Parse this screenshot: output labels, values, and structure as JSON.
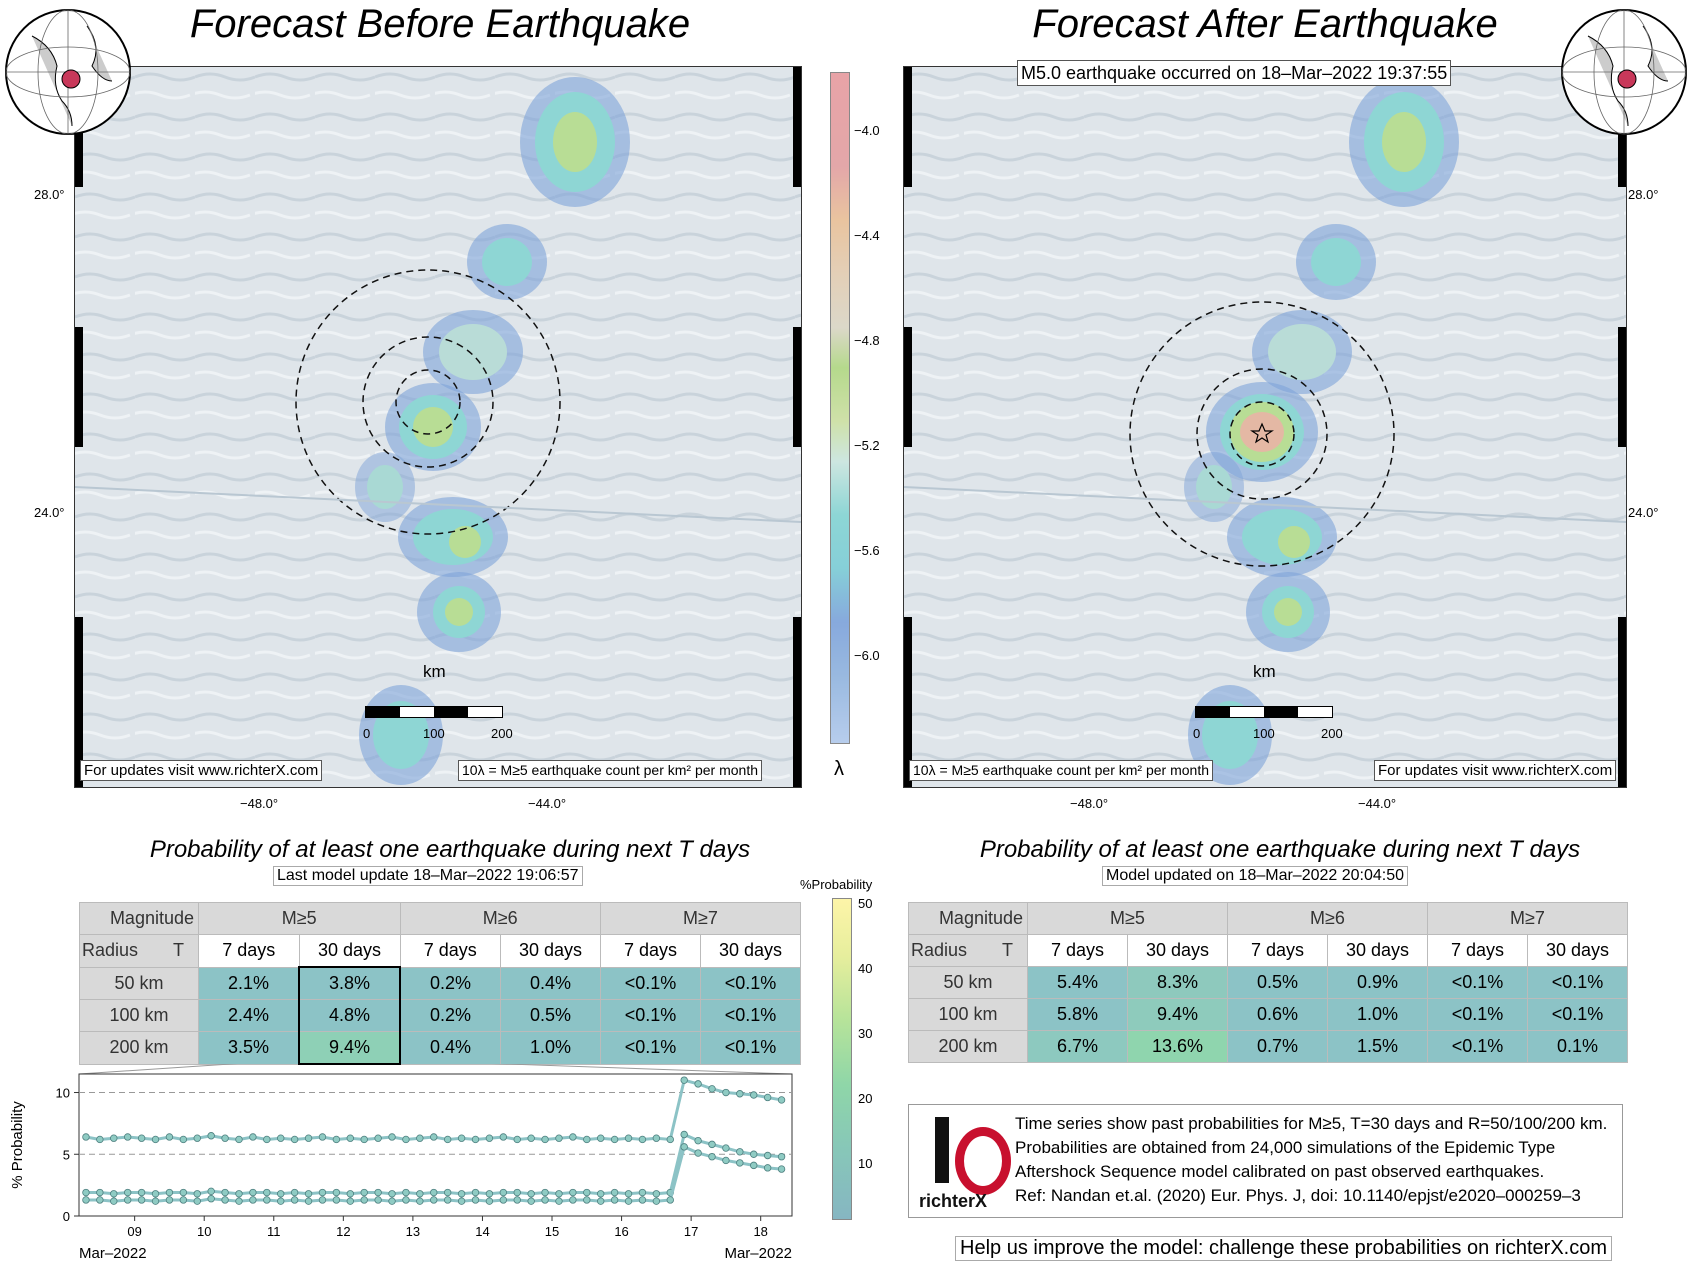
{
  "before": {
    "title": "Forecast Before Earthquake",
    "updates_note": "For updates visit www.richterX.com",
    "units_note": "10λ = M≥5 earthquake count per km² per month",
    "lat_labels": [
      "28.0°",
      "24.0°"
    ],
    "lon_labels": [
      "−48.0°",
      "−44.0°"
    ],
    "scale": {
      "unit": "km",
      "ticks": [
        "0",
        "100",
        "200"
      ]
    }
  },
  "after": {
    "title": "Forecast After Earthquake",
    "event_note": "M5.0 earthquake occurred on 18–Mar–2022 19:37:55",
    "updates_note": "For updates visit www.richterX.com",
    "units_note": "10λ = M≥5 earthquake count per km² per month",
    "lat_labels": [
      "28.0°",
      "24.0°"
    ],
    "lon_labels": [
      "−48.0°",
      "−44.0°"
    ],
    "scale": {
      "unit": "km",
      "ticks": [
        "0",
        "100",
        "200"
      ]
    }
  },
  "lambda_bar": {
    "label": "λ",
    "ticks": [
      "−4.0",
      "−4.4",
      "−4.8",
      "−5.2",
      "−5.6",
      "−6.0"
    ]
  },
  "prob_bar": {
    "label": "%Probability",
    "ticks": [
      "50",
      "40",
      "30",
      "20",
      "10"
    ]
  },
  "table_left": {
    "heading": "Probability of at least one earthquake during next T days",
    "update_note": "Last model update 18–Mar–2022 19:06:57",
    "magnitude_label": "Magnitude",
    "radius_label": "Radius",
    "t_label": "T",
    "magnitudes": [
      "M≥5",
      "M≥6",
      "M≥7"
    ],
    "periods": [
      "7 days",
      "30 days",
      "7 days",
      "30 days",
      "7 days",
      "30 days"
    ],
    "rows": [
      {
        "radius": "50 km",
        "values": [
          "2.1%",
          "3.8%",
          "0.2%",
          "0.4%",
          "<0.1%",
          "<0.1%"
        ]
      },
      {
        "radius": "100 km",
        "values": [
          "2.4%",
          "4.8%",
          "0.2%",
          "0.5%",
          "<0.1%",
          "<0.1%"
        ]
      },
      {
        "radius": "200 km",
        "values": [
          "3.5%",
          "9.4%",
          "0.4%",
          "1.0%",
          "<0.1%",
          "<0.1%"
        ]
      }
    ]
  },
  "table_right": {
    "heading": "Probability of at least one earthquake during next T days",
    "update_note": "Model updated on 18–Mar–2022 20:04:50",
    "magnitude_label": "Magnitude",
    "radius_label": "Radius",
    "t_label": "T",
    "magnitudes": [
      "M≥5",
      "M≥6",
      "M≥7"
    ],
    "periods": [
      "7 days",
      "30 days",
      "7 days",
      "30 days",
      "7 days",
      "30 days"
    ],
    "rows": [
      {
        "radius": "50 km",
        "values": [
          "5.4%",
          "8.3%",
          "0.5%",
          "0.9%",
          "<0.1%",
          "<0.1%"
        ]
      },
      {
        "radius": "100 km",
        "values": [
          "5.8%",
          "9.4%",
          "0.6%",
          "1.0%",
          "<0.1%",
          "<0.1%"
        ]
      },
      {
        "radius": "200 km",
        "values": [
          "6.7%",
          "13.6%",
          "0.7%",
          "1.5%",
          "<0.1%",
          "0.1%"
        ]
      }
    ]
  },
  "info": {
    "logo_text": "richterX",
    "lines": [
      "Time series show past probabilities for M≥5, T=30 days and R=50/100/200 km.",
      "Probabilities are obtained from 24,000 simulations of the Epidemic Type",
      "Aftershock Sequence model calibrated on past observed earthquakes.",
      "Ref: Nandan et.al. (2020) Eur. Phys. J, doi: 10.1140/epjst/e2020–000259–3"
    ],
    "footer": "Help us improve the model: challenge these probabilities on richterX.com"
  },
  "colors": {
    "table_cell": "#8cc3c6",
    "table_cell_high": "#8ed0b6",
    "series_line": "#8cc3c6",
    "series_marker": "#8fcbc3"
  },
  "chart_data": {
    "type": "line",
    "title": "",
    "xlabel": "",
    "ylabel": "% Probability",
    "ylim": [
      0,
      11.5
    ],
    "yticks": [
      0,
      5,
      10
    ],
    "x_tick_labels": [
      "09",
      "10",
      "11",
      "12",
      "13",
      "14",
      "15",
      "16",
      "17",
      "18"
    ],
    "x_range_labels": [
      "Mar–2022",
      "Mar–2022"
    ],
    "x_days": [
      8.3,
      8.5,
      8.7,
      8.9,
      9.1,
      9.3,
      9.5,
      9.7,
      9.9,
      10.1,
      10.3,
      10.5,
      10.7,
      10.9,
      11.1,
      11.3,
      11.5,
      11.7,
      11.9,
      12.1,
      12.3,
      12.5,
      12.7,
      12.9,
      13.1,
      13.3,
      13.5,
      13.7,
      13.9,
      14.1,
      14.3,
      14.5,
      14.7,
      14.9,
      15.1,
      15.3,
      15.5,
      15.7,
      15.9,
      16.1,
      16.3,
      16.5,
      16.7,
      16.9,
      17.1,
      17.3,
      17.5,
      17.7,
      17.9,
      18.1,
      18.3
    ],
    "series": [
      {
        "name": "R=200 km",
        "values": [
          6.4,
          6.2,
          6.3,
          6.4,
          6.3,
          6.2,
          6.4,
          6.2,
          6.3,
          6.5,
          6.3,
          6.2,
          6.4,
          6.2,
          6.3,
          6.2,
          6.3,
          6.4,
          6.2,
          6.3,
          6.2,
          6.3,
          6.4,
          6.2,
          6.3,
          6.4,
          6.2,
          6.3,
          6.2,
          6.3,
          6.4,
          6.2,
          6.3,
          6.2,
          6.3,
          6.4,
          6.2,
          6.3,
          6.2,
          6.3,
          6.2,
          6.3,
          6.2,
          11.0,
          10.7,
          10.3,
          10.0,
          9.9,
          9.8,
          9.6,
          9.4
        ]
      },
      {
        "name": "R=100 km",
        "values": [
          1.9,
          1.9,
          1.8,
          1.9,
          1.9,
          1.8,
          1.9,
          1.9,
          1.8,
          2.0,
          1.9,
          1.8,
          1.9,
          1.9,
          1.8,
          1.9,
          1.8,
          1.9,
          1.9,
          1.8,
          1.9,
          1.9,
          1.8,
          1.9,
          1.8,
          1.9,
          1.9,
          1.8,
          1.9,
          1.8,
          1.9,
          1.9,
          1.8,
          1.9,
          1.8,
          1.9,
          1.9,
          1.8,
          1.9,
          1.8,
          1.9,
          1.8,
          1.9,
          6.6,
          6.1,
          5.8,
          5.5,
          5.2,
          5.0,
          4.9,
          4.8
        ]
      },
      {
        "name": "R=50 km",
        "values": [
          1.3,
          1.3,
          1.2,
          1.3,
          1.3,
          1.2,
          1.3,
          1.3,
          1.2,
          1.4,
          1.3,
          1.2,
          1.3,
          1.3,
          1.2,
          1.3,
          1.2,
          1.3,
          1.3,
          1.2,
          1.3,
          1.3,
          1.2,
          1.3,
          1.2,
          1.3,
          1.3,
          1.2,
          1.3,
          1.2,
          1.3,
          1.3,
          1.2,
          1.3,
          1.2,
          1.3,
          1.3,
          1.2,
          1.3,
          1.2,
          1.3,
          1.2,
          1.3,
          5.6,
          5.1,
          4.8,
          4.5,
          4.3,
          4.1,
          3.9,
          3.8
        ]
      }
    ]
  }
}
